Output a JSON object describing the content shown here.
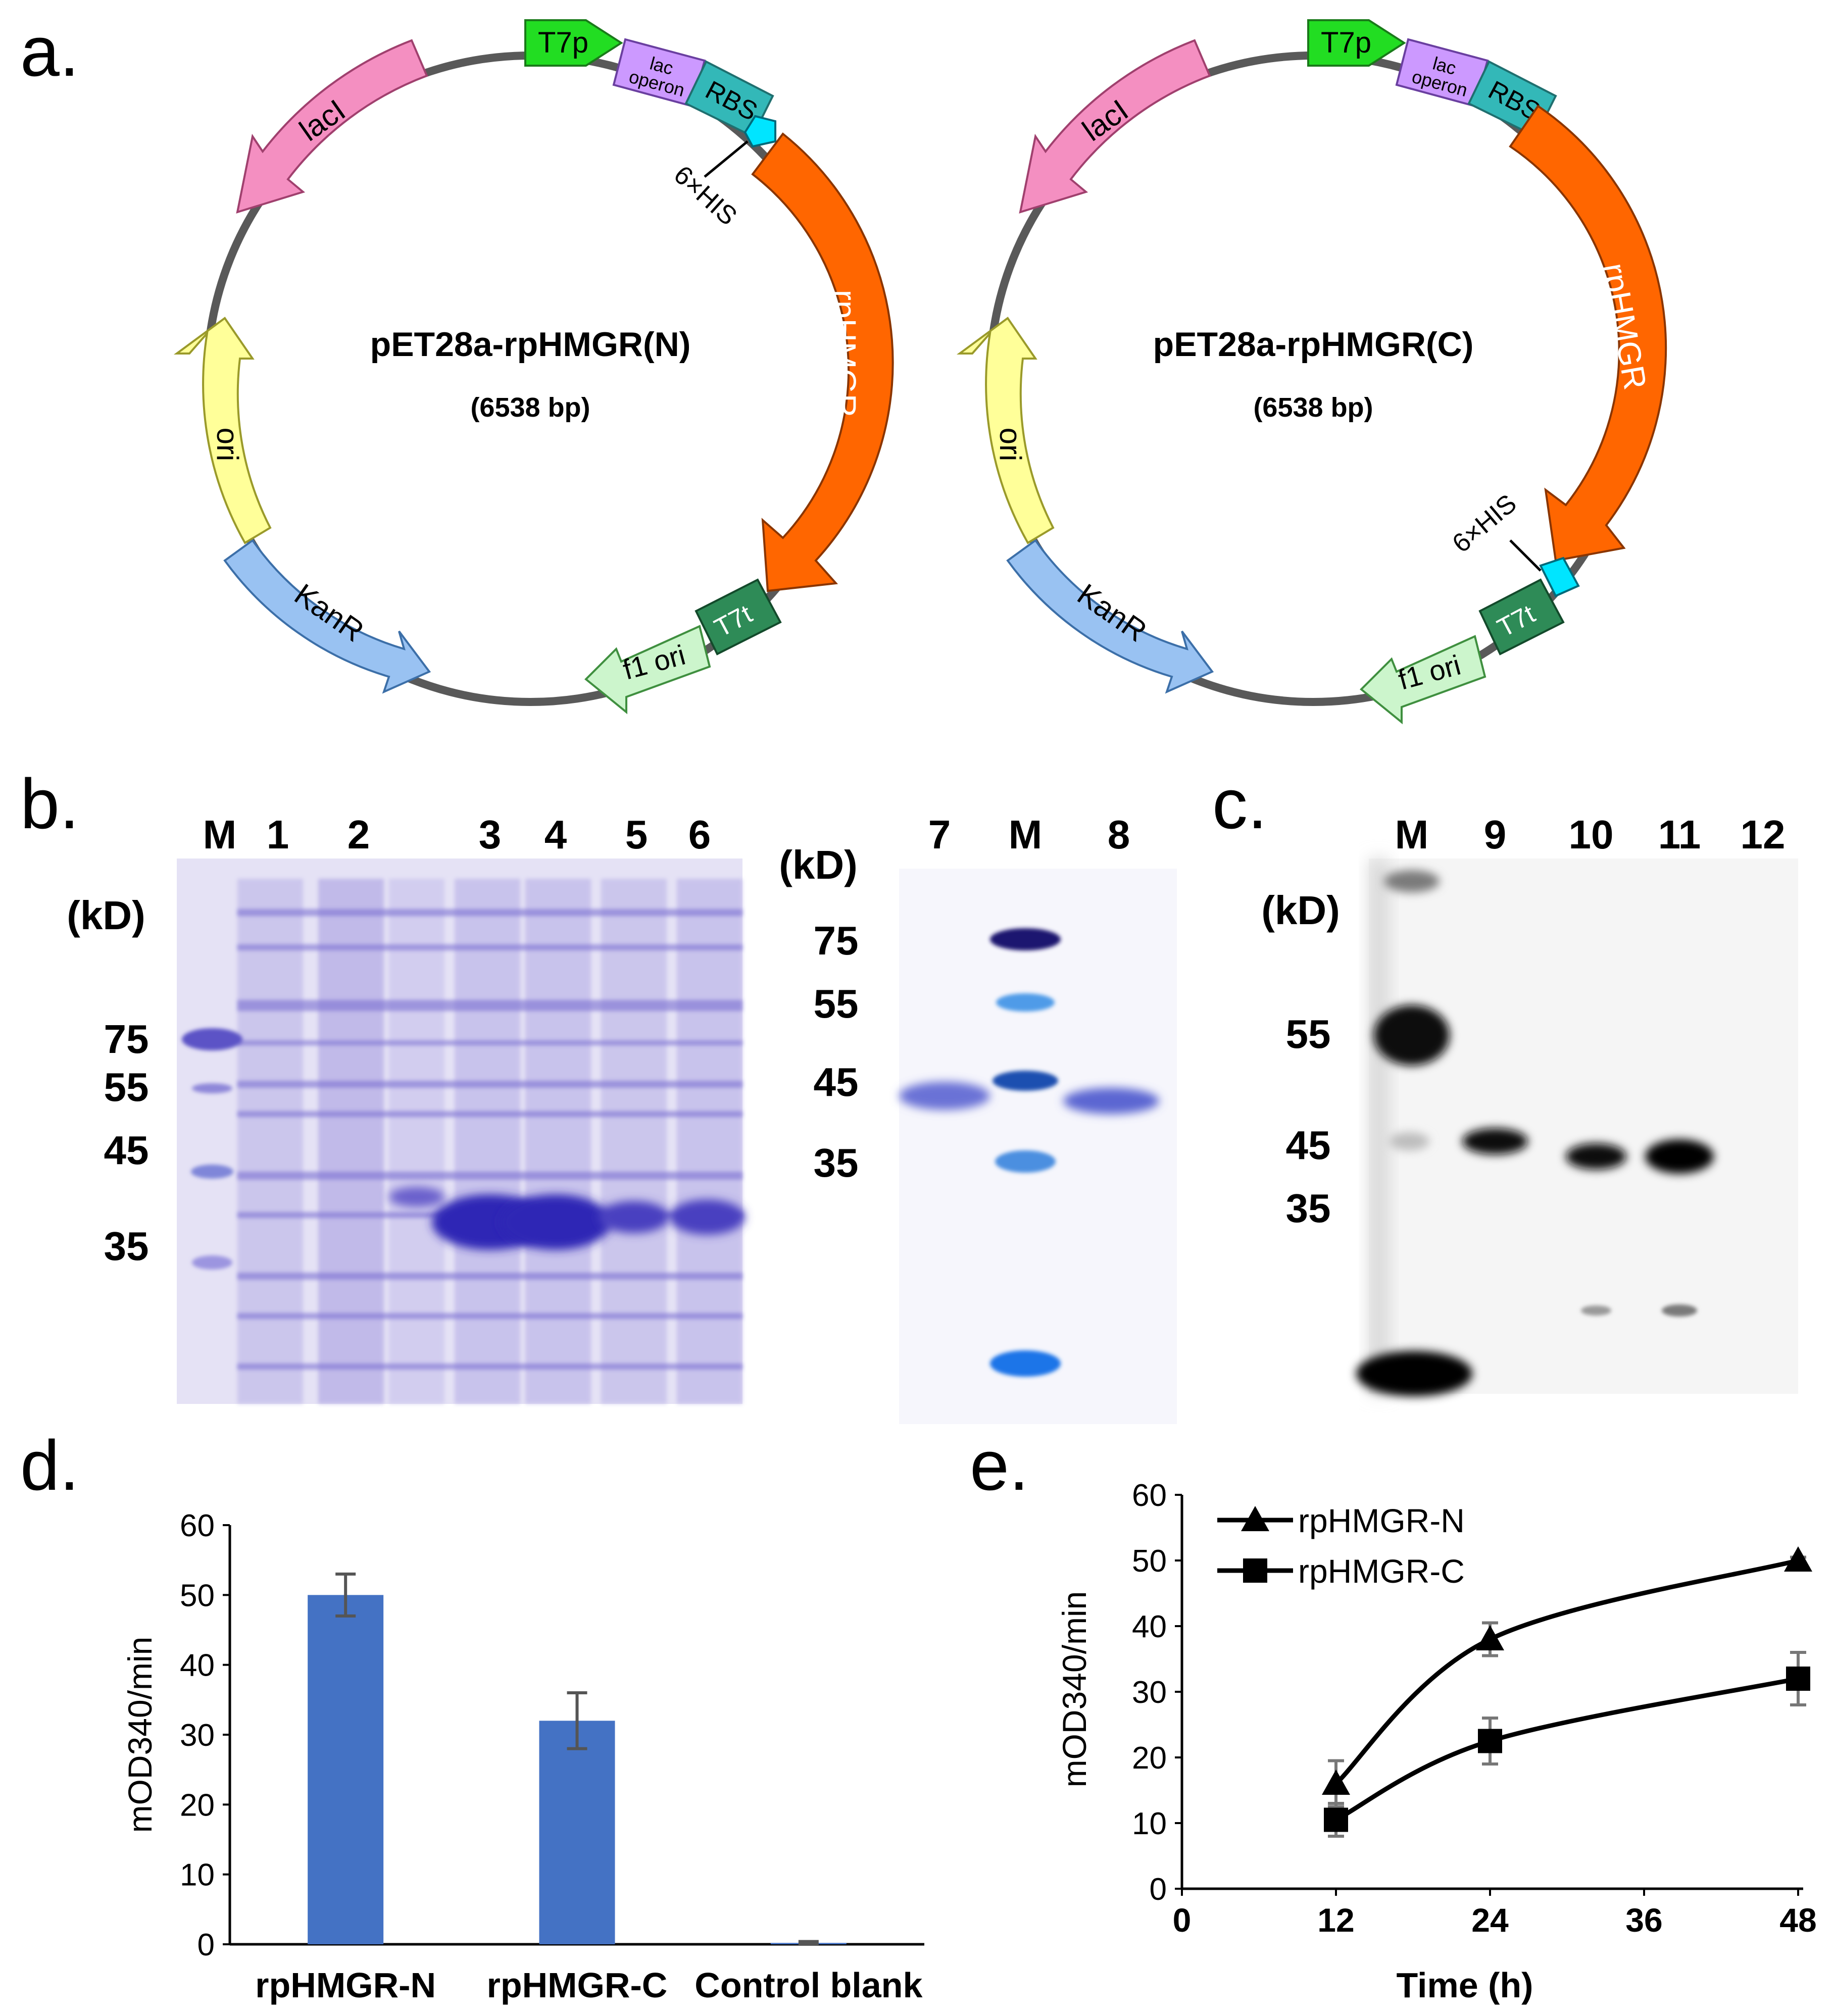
{
  "panels": {
    "a": {
      "letter": "a."
    },
    "b": {
      "letter": "b."
    },
    "c": {
      "letter": "c."
    },
    "d": {
      "letter": "d."
    },
    "e": {
      "letter": "e."
    }
  },
  "plasmid_n": {
    "name": "pET28a-rpHMGR(N)",
    "size": "(6538 bp)",
    "features": {
      "t7p": "T7p",
      "lac": "lac",
      "operon": "operon",
      "rbs": "RBS",
      "his": "6×HIS",
      "rphmgr": "rpHMGR",
      "t7t": "T7t",
      "f1ori": "f1 ori",
      "kanr": "KanR",
      "ori": "ori",
      "laci": "lacI"
    }
  },
  "plasmid_c": {
    "name": "pET28a-rpHMGR(C)",
    "size": "(6538 bp)",
    "features": {
      "t7p": "T7p",
      "lac": "lac",
      "operon": "operon",
      "rbs": "RBS",
      "his": "6×HIS",
      "rphmgr": "rpHMGR",
      "t7t": "T7t",
      "f1ori": "f1 ori",
      "kanr": "KanR",
      "ori": "ori",
      "laci": "lacI"
    }
  },
  "gel_b1": {
    "lanes": [
      "M",
      "1",
      "2",
      "3",
      "4",
      "5",
      "6"
    ],
    "unit": "(kD)",
    "markers": [
      "75",
      "55",
      "45",
      "35"
    ]
  },
  "gel_b2": {
    "lanes": [
      "7",
      "M",
      "8"
    ],
    "unit": "(kD)",
    "markers": [
      "75",
      "55",
      "45",
      "35"
    ]
  },
  "gel_c": {
    "lanes": [
      "M",
      "9",
      "10",
      "11",
      "12"
    ],
    "unit": "(kD)",
    "markers": [
      "55",
      "45",
      "35"
    ]
  },
  "colors": {
    "bar_fill": "#4472C4",
    "backbone": "#595959",
    "laci": "#F48FC1",
    "t7p": "#22DD22",
    "lac": "#CC99FF",
    "rbs": "#33B8B8",
    "his": "#00E5FF",
    "rphmgr": "#FF6600",
    "t7t": "#2E8B57",
    "f1ori": "#CCF5CC",
    "kanr": "#99C2F2",
    "ori": "#FFFF99",
    "coomassie": "#5B52C6",
    "blot": "#111111"
  },
  "chart_data": [
    {
      "panel": "d",
      "type": "bar",
      "categories": [
        "rpHMGR-N",
        "rpHMGR-C",
        "Control blank"
      ],
      "values": [
        50,
        32,
        0.2
      ],
      "errors": [
        3,
        4,
        0.2
      ],
      "ylabel": "mOD340/min",
      "ylim": [
        0,
        60
      ],
      "yticks": [
        "0",
        "10",
        "20",
        "30",
        "40",
        "50",
        "60"
      ]
    },
    {
      "panel": "e",
      "type": "line",
      "xlabel": "Time (h)",
      "ylabel": "mOD340/min",
      "xlim": [
        0,
        48
      ],
      "ylim": [
        0,
        60
      ],
      "xticks": [
        "0",
        "12",
        "24",
        "36",
        "48"
      ],
      "yticks": [
        "0",
        "10",
        "20",
        "30",
        "40",
        "50",
        "60"
      ],
      "legend": "top-left",
      "series": [
        {
          "name": "rpHMGR-N",
          "marker": "triangle",
          "x": [
            12,
            24,
            48
          ],
          "y": [
            16,
            38,
            50
          ],
          "errors": [
            3.5,
            2.5,
            0.5
          ]
        },
        {
          "name": "rpHMGR-C",
          "marker": "square",
          "x": [
            12,
            24,
            48
          ],
          "y": [
            10.5,
            22.5,
            32
          ],
          "errors": [
            2.5,
            3.5,
            4
          ]
        }
      ]
    }
  ]
}
